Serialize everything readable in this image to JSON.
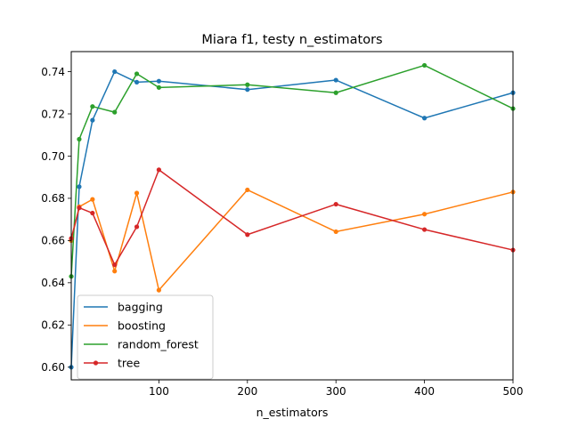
{
  "chart_data": {
    "type": "line",
    "title": "Miara f1, testy n_estimators",
    "xlabel": "n_estimators",
    "ylabel": "",
    "xlim": [
      1,
      500
    ],
    "ylim": [
      0.594,
      0.7495
    ],
    "x_ticks": [
      100,
      200,
      300,
      400,
      500
    ],
    "y_ticks": [
      0.6,
      0.62,
      0.64,
      0.66,
      0.68,
      0.7,
      0.72,
      0.74
    ],
    "grid": false,
    "legend_position": "lower-left",
    "x": [
      1,
      10,
      25,
      50,
      75,
      100,
      200,
      300,
      400,
      500
    ],
    "series": [
      {
        "name": "bagging",
        "color": "#1f77b4",
        "values": [
          0.6,
          0.6855,
          0.717,
          0.74,
          0.735,
          0.7355,
          0.7315,
          0.736,
          0.718,
          0.73
        ]
      },
      {
        "name": "boosting",
        "color": "#ff7f0e",
        "values": [
          0.66,
          0.676,
          0.6795,
          0.6455,
          0.6825,
          0.6365,
          0.684,
          0.6642,
          0.6725,
          0.683
        ]
      },
      {
        "name": "random_forest",
        "color": "#2ca02c",
        "values": [
          0.643,
          0.708,
          0.7235,
          0.7208,
          0.739,
          0.7325,
          0.7338,
          0.73,
          0.743,
          0.7225
        ]
      },
      {
        "name": "tree",
        "color": "#d62728",
        "values": [
          0.661,
          0.6755,
          0.673,
          0.6485,
          0.6665,
          0.6935,
          0.6628,
          0.6772,
          0.6652,
          0.6555
        ]
      }
    ]
  }
}
